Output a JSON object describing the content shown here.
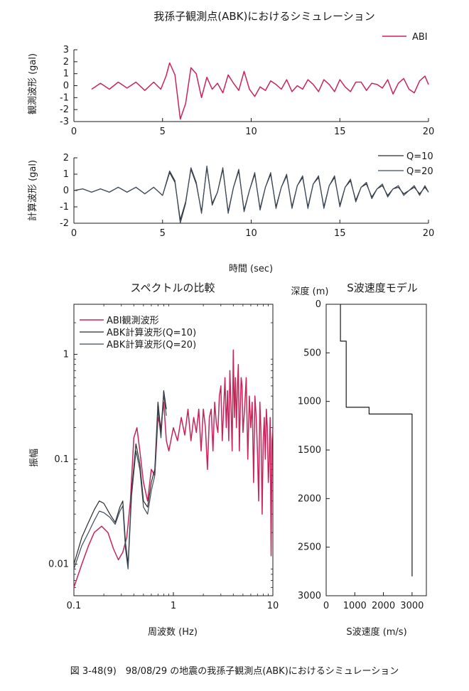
{
  "caption": "図 3-48(9)　98/08/29 の地震の我孫子観測点(ABK)におけるシミュレーション",
  "colors": {
    "observed": "#c8245a",
    "q10": "#2a2a2a",
    "q20": "#3d4a5c",
    "axis": "#1a1a1a"
  },
  "chart_data": [
    {
      "id": "observed_waveform",
      "type": "line",
      "title": "我孫子観測点(ABK)におけるシミュレーション",
      "xlabel": "",
      "ylabel": "観測波形 (gal)",
      "xlim": [
        0,
        20
      ],
      "ylim": [
        -3,
        3
      ],
      "xticks": [
        0,
        5,
        10,
        15,
        20
      ],
      "yticks": [
        -3,
        -2,
        -1,
        0,
        1,
        2,
        3
      ],
      "legend_position": "top-right",
      "series": [
        {
          "name": "ABI",
          "x": [
            1,
            1.5,
            2,
            2.5,
            3,
            3.5,
            4,
            4.5,
            4.9,
            5.2,
            5.4,
            5.7,
            6,
            6.3,
            6.6,
            6.9,
            7.2,
            7.5,
            7.8,
            8.1,
            8.4,
            8.7,
            9,
            9.3,
            9.6,
            9.9,
            10.2,
            10.5,
            10.8,
            11.1,
            11.4,
            11.7,
            12,
            12.3,
            12.6,
            12.9,
            13.2,
            13.5,
            13.8,
            14.1,
            14.4,
            14.7,
            15,
            15.3,
            15.6,
            15.9,
            16.2,
            16.5,
            16.8,
            17.1,
            17.4,
            17.7,
            18,
            18.3,
            18.6,
            18.9,
            19.2,
            19.5,
            19.8,
            20
          ],
          "y": [
            -0.3,
            0.2,
            -0.3,
            0.3,
            -0.2,
            0.3,
            -0.4,
            0.3,
            -0.3,
            0.8,
            1.9,
            0.9,
            -2.8,
            -1.5,
            1.5,
            1.0,
            -1.0,
            0.7,
            -0.3,
            0.2,
            -0.6,
            0.9,
            0.2,
            -0.4,
            1.2,
            -0.3,
            -0.9,
            -0.1,
            -0.4,
            0.4,
            0.1,
            -0.3,
            0.5,
            -0.5,
            0.0,
            -0.3,
            0.5,
            0.1,
            -0.5,
            0.5,
            0.1,
            -0.5,
            0.5,
            -0.1,
            -0.5,
            0.3,
            0.3,
            -0.4,
            0.2,
            0.1,
            -0.2,
            0.5,
            -0.7,
            0.2,
            0.6,
            -0.3,
            -0.6,
            0.4,
            0.8,
            0.1
          ]
        }
      ]
    },
    {
      "id": "computed_waveform",
      "type": "line",
      "title": "",
      "xlabel": "時間 (sec)",
      "ylabel": "計算波形 (gal)",
      "xlim": [
        0,
        20
      ],
      "ylim": [
        -2,
        2
      ],
      "xticks": [
        0,
        5,
        10,
        15,
        20
      ],
      "yticks": [
        -2,
        -1,
        0,
        1,
        2
      ],
      "legend_position": "top-right",
      "series": [
        {
          "name": "Q=10",
          "x": [
            0,
            0.5,
            1,
            1.5,
            2,
            2.5,
            3,
            3.5,
            4,
            4.5,
            5,
            5.4,
            5.7,
            6,
            6.3,
            6.6,
            6.9,
            7.2,
            7.5,
            7.8,
            8.1,
            8.4,
            8.7,
            9,
            9.3,
            9.6,
            9.9,
            10.2,
            10.5,
            10.8,
            11.1,
            11.4,
            11.7,
            12,
            12.3,
            12.6,
            12.9,
            13.2,
            13.5,
            13.8,
            14.1,
            14.4,
            14.7,
            15,
            15.3,
            15.6,
            15.9,
            16.2,
            16.5,
            16.8,
            17.1,
            17.4,
            17.7,
            18,
            18.3,
            18.6,
            18.9,
            19.2,
            19.5,
            19.8,
            20
          ],
          "y": [
            0,
            0.1,
            -0.1,
            0.1,
            -0.1,
            0.2,
            -0.1,
            0.2,
            -0.2,
            0.2,
            -0.3,
            1.1,
            0.5,
            -1.8,
            -0.7,
            1.3,
            0.4,
            -1.3,
            1.4,
            -0.8,
            -0.1,
            1.3,
            -1.3,
            0.2,
            1.2,
            -1.2,
            0.0,
            1.0,
            -1.1,
            0.2,
            1.0,
            -1.0,
            0.2,
            0.9,
            -1.0,
            0.3,
            0.8,
            -1.0,
            0.4,
            0.8,
            -1.0,
            0.3,
            0.8,
            -0.9,
            0.2,
            0.6,
            -0.6,
            0.2,
            0.4,
            -0.4,
            0.1,
            0.3,
            -0.3,
            0.1,
            0.2,
            -0.2,
            0.0,
            0.2,
            -0.2,
            0.2,
            -0.1
          ]
        },
        {
          "name": "Q=20",
          "x": [
            0,
            0.5,
            1,
            1.5,
            2,
            2.5,
            3,
            3.5,
            4,
            4.5,
            5,
            5.4,
            5.7,
            6,
            6.3,
            6.6,
            6.9,
            7.2,
            7.5,
            7.8,
            8.1,
            8.4,
            8.7,
            9,
            9.3,
            9.6,
            9.9,
            10.2,
            10.5,
            10.8,
            11.1,
            11.4,
            11.7,
            12,
            12.3,
            12.6,
            12.9,
            13.2,
            13.5,
            13.8,
            14.1,
            14.4,
            14.7,
            15,
            15.3,
            15.6,
            15.9,
            16.2,
            16.5,
            16.8,
            17.1,
            17.4,
            17.7,
            18,
            18.3,
            18.6,
            18.9,
            19.2,
            19.5,
            19.8,
            20
          ],
          "y": [
            0,
            0.1,
            -0.1,
            0.1,
            -0.1,
            0.2,
            -0.1,
            0.2,
            -0.2,
            0.2,
            -0.3,
            1.2,
            0.6,
            -2.0,
            -0.8,
            1.4,
            0.5,
            -1.4,
            1.5,
            -0.9,
            -0.1,
            1.4,
            -1.4,
            0.2,
            1.3,
            -1.3,
            0.0,
            1.1,
            -1.2,
            0.2,
            1.1,
            -1.1,
            0.2,
            1.0,
            -1.1,
            0.3,
            0.9,
            -1.1,
            0.4,
            0.9,
            -1.1,
            0.3,
            0.9,
            -1.0,
            0.2,
            0.7,
            -0.7,
            0.2,
            0.5,
            -0.5,
            0.1,
            0.4,
            -0.4,
            0.1,
            0.3,
            -0.3,
            0.0,
            0.3,
            -0.3,
            0.3,
            -0.1
          ]
        }
      ]
    },
    {
      "id": "spectrum_comparison",
      "type": "line",
      "title": "スペクトルの比較",
      "xlabel": "周波数 (Hz)",
      "ylabel": "振幅",
      "xscale": "log",
      "yscale": "log",
      "xlim": [
        0.1,
        10
      ],
      "ylim": [
        0.005,
        3
      ],
      "xticks": [
        0.1,
        1,
        10
      ],
      "xtick_labels": [
        "0.1",
        "1",
        "10"
      ],
      "yticks": [
        0.01,
        0.1,
        1
      ],
      "ytick_labels": [
        "0.01",
        "0.1",
        "1"
      ],
      "legend_position": "top-left",
      "series": [
        {
          "name": "ABI観測波形",
          "x": [
            0.1,
            0.12,
            0.14,
            0.16,
            0.19,
            0.22,
            0.25,
            0.28,
            0.31,
            0.34,
            0.37,
            0.4,
            0.43,
            0.46,
            0.5,
            0.55,
            0.6,
            0.65,
            0.7,
            0.75,
            0.8,
            0.85,
            0.9,
            1.0,
            1.1,
            1.2,
            1.3,
            1.4,
            1.5,
            1.6,
            1.7,
            1.8,
            1.9,
            2.0,
            2.1,
            2.2,
            2.3,
            2.4,
            2.5,
            2.6,
            2.7,
            2.8,
            2.9,
            3.0,
            3.1,
            3.2,
            3.3,
            3.4,
            3.5,
            3.6,
            3.7,
            3.8,
            3.9,
            4.0,
            4.1,
            4.2,
            4.3,
            4.4,
            4.5,
            4.6,
            4.7,
            4.8,
            4.9,
            5.0,
            5.2,
            5.4,
            5.6,
            5.8,
            6.0,
            6.2,
            6.4,
            6.6,
            6.8,
            7.0,
            7.2,
            7.4,
            7.6,
            7.8,
            8.0,
            8.2,
            8.4,
            8.6,
            8.8,
            9.0,
            9.2,
            9.4,
            9.6,
            9.8,
            10.0
          ],
          "y": [
            0.006,
            0.01,
            0.015,
            0.02,
            0.023,
            0.02,
            0.014,
            0.011,
            0.013,
            0.018,
            0.04,
            0.16,
            0.2,
            0.12,
            0.06,
            0.04,
            0.08,
            0.07,
            0.25,
            0.2,
            0.35,
            0.15,
            0.12,
            0.2,
            0.15,
            0.25,
            0.17,
            0.3,
            0.15,
            0.25,
            0.18,
            0.3,
            0.12,
            0.3,
            0.2,
            0.08,
            0.25,
            0.3,
            0.12,
            0.35,
            0.22,
            0.18,
            0.4,
            0.5,
            0.15,
            0.3,
            0.6,
            0.2,
            0.45,
            0.15,
            0.7,
            0.3,
            0.12,
            1.1,
            0.25,
            0.6,
            0.2,
            0.5,
            0.8,
            0.12,
            0.3,
            0.6,
            0.5,
            0.18,
            0.3,
            0.6,
            0.1,
            0.4,
            0.2,
            0.35,
            0.06,
            0.4,
            0.25,
            0.12,
            0.04,
            0.35,
            0.18,
            0.03,
            0.15,
            0.25,
            0.1,
            0.3,
            0.2,
            0.06,
            0.1,
            0.25,
            0.012,
            0.15,
            0.2
          ]
        },
        {
          "name": "ABK計算波形(Q=10)",
          "x": [
            0.1,
            0.12,
            0.14,
            0.16,
            0.18,
            0.2,
            0.23,
            0.26,
            0.29,
            0.31,
            0.33,
            0.35,
            0.38,
            0.42,
            0.46,
            0.5,
            0.55,
            0.6,
            0.65,
            0.7,
            0.75,
            0.8,
            0.85
          ],
          "y": [
            0.01,
            0.018,
            0.025,
            0.033,
            0.04,
            0.038,
            0.03,
            0.025,
            0.035,
            0.04,
            0.016,
            0.01,
            0.05,
            0.14,
            0.09,
            0.04,
            0.035,
            0.06,
            0.08,
            0.35,
            0.18,
            0.45,
            0.3
          ]
        },
        {
          "name": "ABK計算波形(Q=20)",
          "x": [
            0.1,
            0.12,
            0.14,
            0.16,
            0.18,
            0.2,
            0.23,
            0.26,
            0.29,
            0.31,
            0.33,
            0.35,
            0.38,
            0.42,
            0.46,
            0.5,
            0.55,
            0.6,
            0.65,
            0.7,
            0.75,
            0.8,
            0.85
          ],
          "y": [
            0.009,
            0.015,
            0.02,
            0.026,
            0.032,
            0.031,
            0.028,
            0.024,
            0.032,
            0.036,
            0.014,
            0.009,
            0.045,
            0.12,
            0.08,
            0.035,
            0.03,
            0.05,
            0.07,
            0.3,
            0.16,
            0.42,
            0.26
          ]
        }
      ]
    },
    {
      "id": "s_wave_velocity_model",
      "type": "line",
      "title": "S波速度モデル",
      "xlabel": "S波速度 (m/s)",
      "ylabel": "深度 (m)",
      "xlim": [
        0,
        3500
      ],
      "ylim": [
        3000,
        0
      ],
      "xticks": [
        0,
        1000,
        2000,
        3000
      ],
      "yticks": [
        0,
        500,
        1000,
        1500,
        2000,
        2500,
        3000
      ],
      "series": [
        {
          "name": "",
          "x": [
            500,
            500,
            700,
            700,
            1500,
            1500,
            3000,
            3000
          ],
          "y": [
            0,
            380,
            380,
            1060,
            1060,
            1130,
            1130,
            2800
          ]
        }
      ]
    }
  ]
}
